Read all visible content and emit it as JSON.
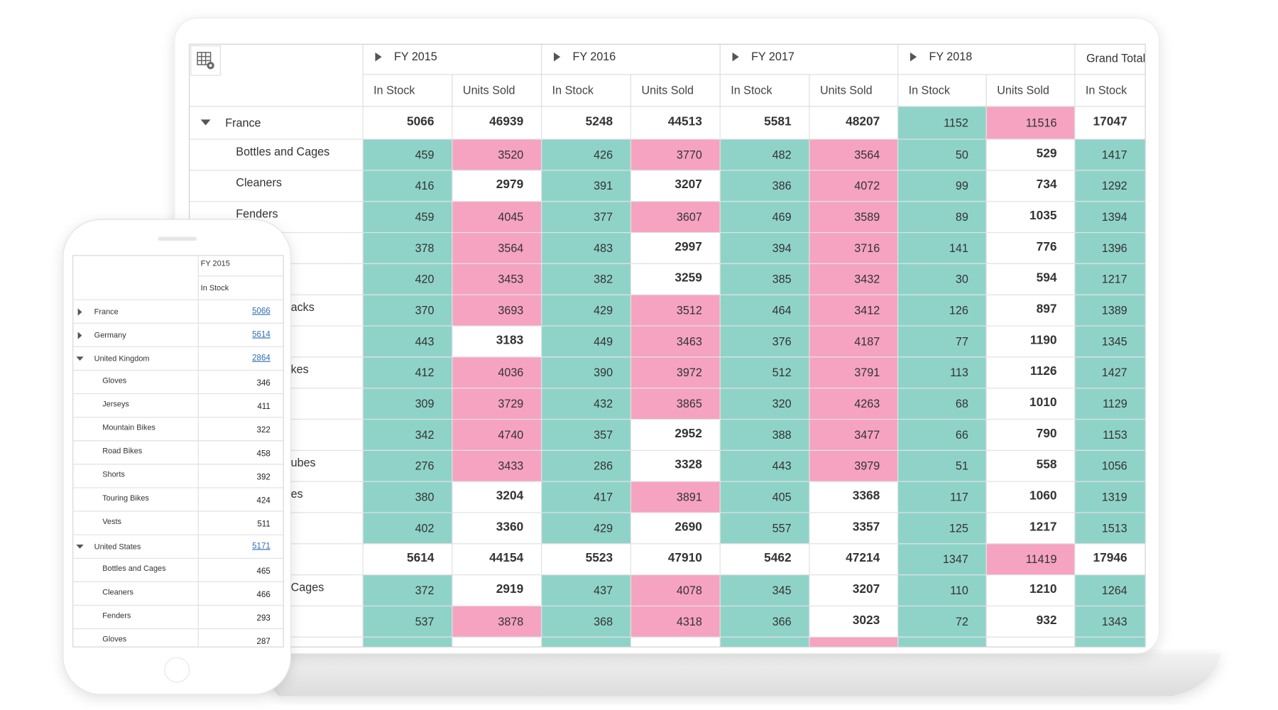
{
  "palette": {
    "teal": "#8fd3c8",
    "pink": "#f5a3c0",
    "white": "#ffffff"
  },
  "table": {
    "columns": [
      {
        "label": "FY 2015",
        "expandable": true,
        "measures": [
          "In Stock",
          "Units Sold"
        ]
      },
      {
        "label": "FY 2016",
        "expandable": true,
        "measures": [
          "In Stock",
          "Units Sold"
        ]
      },
      {
        "label": "FY 2017",
        "expandable": true,
        "measures": [
          "In Stock",
          "Units Sold"
        ]
      },
      {
        "label": "FY 2018",
        "expandable": true,
        "measures": [
          "In Stock",
          "Units Sold"
        ]
      },
      {
        "label": "Grand Total",
        "expandable": false,
        "measures": [
          "In Stock"
        ]
      }
    ],
    "rows": [
      {
        "label": "France",
        "level": 0,
        "values": [
          5066,
          46939,
          5248,
          44513,
          5581,
          48207,
          1152,
          11516,
          17047
        ],
        "colors": [
          "white",
          "white",
          "white",
          "white",
          "white",
          "white",
          "teal",
          "pink",
          "white"
        ]
      },
      {
        "label": "Bottles and Cages",
        "level": 1,
        "values": [
          459,
          3520,
          426,
          3770,
          482,
          3564,
          50,
          529,
          1417
        ],
        "colors": [
          "teal",
          "pink",
          "teal",
          "pink",
          "teal",
          "pink",
          "teal",
          "white",
          "teal"
        ]
      },
      {
        "label": "Cleaners",
        "level": 1,
        "values": [
          416,
          2979,
          391,
          3207,
          386,
          4072,
          99,
          734,
          1292
        ],
        "colors": [
          "teal",
          "white",
          "teal",
          "white",
          "teal",
          "pink",
          "teal",
          "white",
          "teal"
        ]
      },
      {
        "label": "Fenders",
        "level": 1,
        "values": [
          459,
          4045,
          377,
          3607,
          469,
          3589,
          89,
          1035,
          1394
        ],
        "colors": [
          "teal",
          "pink",
          "teal",
          "pink",
          "teal",
          "pink",
          "teal",
          "white",
          "teal"
        ]
      },
      {
        "level": 1,
        "values": [
          378,
          3564,
          483,
          2997,
          394,
          3716,
          141,
          776,
          1396
        ],
        "colors": [
          "teal",
          "pink",
          "teal",
          "white",
          "teal",
          "pink",
          "teal",
          "white",
          "teal"
        ]
      },
      {
        "level": 1,
        "values": [
          420,
          3453,
          382,
          3259,
          385,
          3432,
          30,
          594,
          1217
        ],
        "colors": [
          "teal",
          "pink",
          "teal",
          "white",
          "teal",
          "pink",
          "teal",
          "white",
          "teal"
        ]
      },
      {
        "label": "acks",
        "level": 1,
        "clipped": true,
        "values": [
          370,
          3693,
          429,
          3512,
          464,
          3412,
          126,
          897,
          1389
        ],
        "colors": [
          "teal",
          "pink",
          "teal",
          "pink",
          "teal",
          "pink",
          "teal",
          "white",
          "teal"
        ]
      },
      {
        "level": 1,
        "values": [
          443,
          3183,
          449,
          3463,
          376,
          4187,
          77,
          1190,
          1345
        ],
        "colors": [
          "teal",
          "white",
          "teal",
          "pink",
          "teal",
          "pink",
          "teal",
          "white",
          "teal"
        ]
      },
      {
        "label": "kes",
        "level": 1,
        "clipped": true,
        "values": [
          412,
          4036,
          390,
          3972,
          512,
          3791,
          113,
          1126,
          1427
        ],
        "colors": [
          "teal",
          "pink",
          "teal",
          "pink",
          "teal",
          "pink",
          "teal",
          "white",
          "teal"
        ]
      },
      {
        "level": 1,
        "values": [
          309,
          3729,
          432,
          3865,
          320,
          4263,
          68,
          1010,
          1129
        ],
        "colors": [
          "teal",
          "pink",
          "teal",
          "pink",
          "teal",
          "pink",
          "teal",
          "white",
          "teal"
        ]
      },
      {
        "level": 1,
        "values": [
          342,
          4740,
          357,
          2952,
          388,
          3477,
          66,
          790,
          1153
        ],
        "colors": [
          "teal",
          "pink",
          "teal",
          "white",
          "teal",
          "pink",
          "teal",
          "white",
          "teal"
        ]
      },
      {
        "label": "ubes",
        "level": 1,
        "clipped": true,
        "values": [
          276,
          3433,
          286,
          3328,
          443,
          3979,
          51,
          558,
          1056
        ],
        "colors": [
          "teal",
          "pink",
          "teal",
          "white",
          "teal",
          "pink",
          "teal",
          "white",
          "teal"
        ]
      },
      {
        "label": "es",
        "level": 1,
        "clipped": true,
        "values": [
          380,
          3204,
          417,
          3891,
          405,
          3368,
          117,
          1060,
          1319
        ],
        "colors": [
          "teal",
          "white",
          "teal",
          "pink",
          "teal",
          "white",
          "teal",
          "white",
          "teal"
        ]
      },
      {
        "level": 1,
        "values": [
          402,
          3360,
          429,
          2690,
          557,
          3357,
          125,
          1217,
          1513
        ],
        "colors": [
          "teal",
          "white",
          "teal",
          "white",
          "teal",
          "white",
          "teal",
          "white",
          "teal"
        ]
      },
      {
        "level": 0,
        "values": [
          5614,
          44154,
          5523,
          47910,
          5462,
          47214,
          1347,
          11419,
          17946
        ],
        "colors": [
          "white",
          "white",
          "white",
          "white",
          "white",
          "white",
          "teal",
          "pink",
          "white"
        ]
      },
      {
        "label": "Cages",
        "level": 1,
        "clipped": true,
        "values": [
          372,
          2919,
          437,
          4078,
          345,
          3207,
          110,
          1210,
          1264
        ],
        "colors": [
          "teal",
          "white",
          "teal",
          "pink",
          "teal",
          "white",
          "teal",
          "white",
          "teal"
        ]
      },
      {
        "level": 1,
        "values": [
          537,
          3878,
          368,
          4318,
          366,
          3023,
          72,
          932,
          1343
        ],
        "colors": [
          "teal",
          "pink",
          "teal",
          "pink",
          "teal",
          "white",
          "teal",
          "white",
          "teal"
        ]
      },
      {
        "level": 1,
        "colors": [
          "teal",
          "white",
          "teal",
          "white",
          "teal",
          "pink",
          "teal",
          "white",
          "teal"
        ]
      }
    ]
  },
  "phone": {
    "column": "FY 2015",
    "measure": "In Stock",
    "rows": [
      {
        "label": "France",
        "level": 0,
        "expanded": false,
        "value": 5066
      },
      {
        "label": "Germany",
        "level": 0,
        "expanded": false,
        "value": 5614
      },
      {
        "label": "United Kingdom",
        "level": 0,
        "expanded": true,
        "value": 2864
      },
      {
        "label": "Gloves",
        "level": 1,
        "value": 346
      },
      {
        "label": "Jerseys",
        "level": 1,
        "value": 411
      },
      {
        "label": "Mountain Bikes",
        "level": 1,
        "value": 322
      },
      {
        "label": "Road Bikes",
        "level": 1,
        "value": 458
      },
      {
        "label": "Shorts",
        "level": 1,
        "value": 392
      },
      {
        "label": "Touring Bikes",
        "level": 1,
        "value": 424
      },
      {
        "label": "Vests",
        "level": 1,
        "value": 511
      },
      {
        "label": "United States",
        "level": 0,
        "expanded": true,
        "value": 5171
      },
      {
        "label": "Bottles and Cages",
        "level": 1,
        "value": 465
      },
      {
        "label": "Cleaners",
        "level": 1,
        "value": 466
      },
      {
        "label": "Fenders",
        "level": 1,
        "value": 293
      },
      {
        "label": "Gloves",
        "level": 1,
        "value": 287
      }
    ]
  }
}
